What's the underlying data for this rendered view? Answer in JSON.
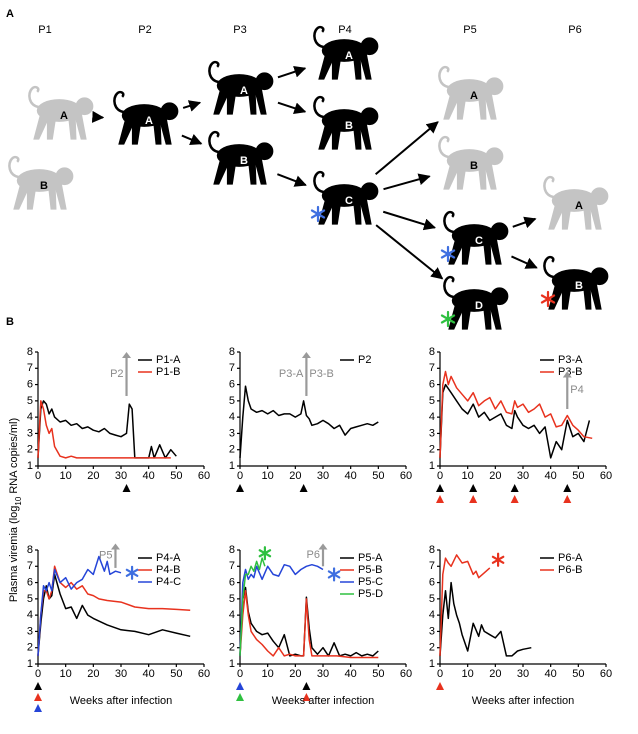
{
  "diagram": {
    "label": "A",
    "passages": [
      "P1",
      "P2",
      "P3",
      "P4",
      "P5",
      "P6"
    ],
    "animals": [
      {
        "passage": 0,
        "label": "A",
        "color": "#c4c4c4"
      },
      {
        "passage": 0,
        "label": "B",
        "color": "#c4c4c4"
      },
      {
        "passage": 1,
        "label": "A",
        "color": "#000000"
      },
      {
        "passage": 2,
        "label": "A",
        "color": "#000000"
      },
      {
        "passage": 2,
        "label": "B",
        "color": "#000000"
      },
      {
        "passage": 3,
        "label": "A",
        "color": "#000000"
      },
      {
        "passage": 3,
        "label": "B",
        "color": "#000000"
      },
      {
        "passage": 3,
        "label": "C",
        "color": "#000000",
        "asterisk": "#3f6fe0"
      },
      {
        "passage": 4,
        "label": "A",
        "color": "#c4c4c4"
      },
      {
        "passage": 4,
        "label": "B",
        "color": "#c4c4c4"
      },
      {
        "passage": 4,
        "label": "C",
        "color": "#000000",
        "asterisk": "#3f6fe0"
      },
      {
        "passage": 4,
        "label": "D",
        "color": "#000000",
        "asterisk": "#2fc040"
      },
      {
        "passage": 5,
        "label": "A",
        "color": "#c4c4c4"
      },
      {
        "passage": 5,
        "label": "B",
        "color": "#000000",
        "asterisk": "#e8321e"
      }
    ]
  },
  "panel_b": {
    "label": "B",
    "y_label": [
      "Plasma viremia (log",
      "10",
      " RNA copies/ml)"
    ]
  },
  "chart_data": [
    {
      "type": "line",
      "xlim": [
        0,
        60
      ],
      "ylim": [
        1,
        8
      ],
      "xticks": [
        0,
        10,
        20,
        30,
        40,
        50,
        60
      ],
      "yticks": [
        1,
        2,
        3,
        4,
        5,
        6,
        7,
        8
      ],
      "legend": "top-right",
      "series": [
        {
          "name": "P1-A",
          "color": "#000000",
          "x": [
            0,
            1,
            2,
            3,
            4,
            5,
            6,
            8,
            10,
            12,
            14,
            16,
            18,
            20,
            22,
            24,
            26,
            28,
            30,
            32,
            33,
            34,
            35,
            40,
            41,
            42,
            44,
            46,
            48,
            50
          ],
          "values": [
            1.5,
            4.5,
            5,
            4.8,
            4.2,
            4.5,
            4,
            3.7,
            3.8,
            3.5,
            3.6,
            3.3,
            3.4,
            3.2,
            3.1,
            3.3,
            3.0,
            2.9,
            2.8,
            3.0,
            4.8,
            4.5,
            1.5,
            1.5,
            2.2,
            1.5,
            2.3,
            1.5,
            2,
            1.6
          ]
        },
        {
          "name": "P1-B",
          "color": "#e8321e",
          "x": [
            0,
            1,
            2,
            3,
            4,
            5,
            6,
            8,
            10,
            12,
            14,
            16,
            20,
            25,
            30,
            35,
            40,
            45,
            48
          ],
          "values": [
            1.5,
            5,
            4.5,
            3.5,
            3,
            3.3,
            2.2,
            1.6,
            1.5,
            1.6,
            1.5,
            1.5,
            1.5,
            1.5,
            1.5,
            1.5,
            1.5,
            1.5,
            1.5
          ]
        }
      ],
      "annotations": [
        {
          "x": 32,
          "y_from": 5.3,
          "y_to": 8,
          "label_left": "P2"
        }
      ],
      "markers": [
        {
          "x": 32,
          "colors": [
            "#000000"
          ]
        }
      ]
    },
    {
      "type": "line",
      "xlim": [
        0,
        60
      ],
      "ylim": [
        1,
        8
      ],
      "xticks": [
        0,
        10,
        20,
        30,
        40,
        50,
        60
      ],
      "yticks": [
        1,
        2,
        3,
        4,
        5,
        6,
        7,
        8
      ],
      "legend": "top-right",
      "series": [
        {
          "name": "P2",
          "color": "#000000",
          "x": [
            0,
            1,
            2,
            3,
            4,
            6,
            8,
            10,
            12,
            14,
            16,
            18,
            20,
            22,
            23,
            24,
            25,
            26,
            28,
            30,
            32,
            34,
            36,
            38,
            40,
            42,
            44,
            46,
            48,
            50
          ],
          "values": [
            1.5,
            4,
            5.9,
            5,
            4.5,
            4.3,
            4.4,
            4.2,
            4.4,
            4.1,
            4.2,
            4.2,
            4,
            4.2,
            5,
            4.1,
            3.9,
            3.5,
            3.6,
            3.8,
            3.6,
            3.3,
            3.5,
            2.9,
            3.3,
            3.4,
            3.5,
            3.6,
            3.5,
            3.7
          ]
        }
      ],
      "annotations": [
        {
          "x": 24,
          "y_from": 5.3,
          "y_to": 8,
          "label_left": "P3-A",
          "label_right": "P3-B"
        }
      ],
      "markers": [
        {
          "x": 0,
          "colors": [
            "#000000"
          ]
        },
        {
          "x": 23,
          "colors": [
            "#000000"
          ]
        }
      ]
    },
    {
      "type": "line",
      "xlim": [
        0,
        60
      ],
      "ylim": [
        1,
        8
      ],
      "xticks": [
        0,
        10,
        20,
        30,
        40,
        50,
        60
      ],
      "yticks": [
        1,
        2,
        3,
        4,
        5,
        6,
        7,
        8
      ],
      "legend": "top-right",
      "series": [
        {
          "name": "P3-A",
          "color": "#000000",
          "x": [
            0,
            1,
            2,
            4,
            6,
            8,
            10,
            12,
            14,
            16,
            18,
            20,
            22,
            24,
            26,
            27,
            28,
            30,
            32,
            34,
            36,
            38,
            40,
            42,
            44,
            46,
            48,
            50,
            52,
            54
          ],
          "values": [
            1.5,
            5.5,
            6,
            5.5,
            5,
            4.5,
            4.2,
            4.8,
            4,
            4.3,
            3.8,
            4,
            4.2,
            3.5,
            3.3,
            4.4,
            4,
            3.5,
            3.3,
            3.5,
            3,
            3.4,
            1.5,
            2.5,
            2,
            3.8,
            2.8,
            3,
            2.5,
            3.8
          ]
        },
        {
          "name": "P3-B",
          "color": "#e8321e",
          "x": [
            0,
            1,
            2,
            3,
            4,
            6,
            8,
            10,
            12,
            14,
            16,
            18,
            20,
            22,
            24,
            26,
            27,
            28,
            30,
            32,
            34,
            36,
            38,
            40,
            42,
            44,
            46,
            48,
            50,
            52,
            55
          ],
          "values": [
            1.5,
            6,
            6.8,
            6,
            6.5,
            5.8,
            5.4,
            5,
            5.5,
            4.7,
            5,
            5.2,
            4.5,
            5,
            4.3,
            4.2,
            5,
            4.6,
            4.8,
            4.3,
            4.5,
            4.8,
            4.0,
            4.2,
            3.4,
            3.5,
            4.1,
            3.5,
            3.2,
            2.8,
            2.7
          ]
        }
      ],
      "annotations": [
        {
          "x": 46,
          "y_from": 4.5,
          "y_to": 6.8,
          "label_right": "P4"
        }
      ],
      "markers": [
        {
          "x": 0,
          "colors": [
            "#000000",
            "#e8321e"
          ]
        },
        {
          "x": 12,
          "colors": [
            "#000000",
            "#e8321e"
          ]
        },
        {
          "x": 27,
          "colors": [
            "#000000",
            "#e8321e"
          ]
        },
        {
          "x": 46,
          "colors": [
            "#000000",
            "#e8321e"
          ]
        }
      ]
    },
    {
      "type": "line",
      "xlim": [
        0,
        60
      ],
      "ylim": [
        1,
        8
      ],
      "xticks": [
        0,
        10,
        20,
        30,
        40,
        50,
        60
      ],
      "yticks": [
        1,
        2,
        3,
        4,
        5,
        6,
        7,
        8
      ],
      "legend": "top-right",
      "x_label": "Weeks after infection",
      "series": [
        {
          "name": "P4-A",
          "color": "#000000",
          "x": [
            0,
            1,
            2,
            3,
            4,
            5,
            6,
            8,
            10,
            12,
            14,
            16,
            18,
            20,
            25,
            30,
            35,
            40,
            45,
            50,
            55
          ],
          "values": [
            1.5,
            3.5,
            5,
            5.8,
            5,
            5.2,
            6.5,
            5.3,
            4.4,
            4.5,
            3.8,
            4.6,
            4,
            3.8,
            3.4,
            3.1,
            3,
            2.8,
            3.1,
            2.9,
            2.7
          ]
        },
        {
          "name": "P4-B",
          "color": "#e8321e",
          "x": [
            0,
            1,
            2,
            3,
            4,
            5,
            6,
            8,
            10,
            12,
            14,
            16,
            18,
            20,
            22,
            25,
            30,
            35,
            40,
            45,
            50,
            55
          ],
          "values": [
            1.5,
            4,
            5.5,
            5.5,
            5,
            5.5,
            7,
            6,
            5.7,
            6,
            5.6,
            5.8,
            5.3,
            5.2,
            5,
            4.9,
            4.8,
            4.5,
            4.4,
            4.4,
            4.35,
            4.3
          ]
        },
        {
          "name": "P4-C",
          "color": "#2545d8",
          "x": [
            0,
            1,
            2,
            3,
            4,
            5,
            6,
            8,
            10,
            12,
            14,
            16,
            18,
            20,
            22,
            24,
            25,
            26,
            28,
            30
          ],
          "values": [
            1.5,
            4,
            5.8,
            5.5,
            6,
            5.5,
            6.8,
            6,
            6.3,
            5.6,
            6,
            6.2,
            6.8,
            6.5,
            7.6,
            6.7,
            7.3,
            6.5,
            6.7,
            6.6
          ]
        }
      ],
      "annotations": [
        {
          "x": 28,
          "y_from": 6.9,
          "y_to": 8.4,
          "label_left": "P5"
        }
      ],
      "asterisks": [
        {
          "x": 34,
          "y": 6.6,
          "color": "#3f6fe0"
        }
      ],
      "markers": [
        {
          "x": 0,
          "colors": [
            "#000000",
            "#e8321e",
            "#2545d8"
          ]
        }
      ]
    },
    {
      "type": "line",
      "xlim": [
        0,
        60
      ],
      "ylim": [
        1,
        8
      ],
      "xticks": [
        0,
        10,
        20,
        30,
        40,
        50,
        60
      ],
      "yticks": [
        1,
        2,
        3,
        4,
        5,
        6,
        7,
        8
      ],
      "legend": "top-right",
      "x_label": "Weeks after infection",
      "series": [
        {
          "name": "P5-A",
          "color": "#000000",
          "x": [
            0,
            1,
            2,
            3,
            4,
            6,
            8,
            10,
            12,
            14,
            16,
            18,
            20,
            22,
            23,
            24,
            25,
            26,
            28,
            30,
            32,
            34,
            36,
            38,
            40,
            42,
            44,
            46,
            48,
            50
          ],
          "values": [
            1.5,
            5,
            5.7,
            4.2,
            3.5,
            3,
            2.8,
            2.9,
            2.4,
            2,
            2.8,
            1.5,
            1.6,
            1.5,
            1.5,
            5.1,
            3.2,
            2,
            1.6,
            2,
            1.5,
            2.3,
            1.5,
            1.6,
            1.5,
            1.7,
            1.5,
            1.6,
            1.5,
            1.8
          ]
        },
        {
          "name": "P5-B",
          "color": "#e8321e",
          "x": [
            0,
            1,
            2,
            3,
            4,
            6,
            8,
            10,
            12,
            14,
            16,
            18,
            20,
            22,
            23,
            24,
            25,
            26,
            28,
            30,
            35,
            40,
            45,
            50
          ],
          "values": [
            1.5,
            4,
            5.5,
            4,
            3,
            2.5,
            2.2,
            1.8,
            1.5,
            2,
            1.5,
            1.6,
            1.5,
            1.5,
            1.5,
            5,
            2.5,
            1.5,
            1.5,
            1.5,
            1.5,
            1.4,
            1.4,
            1.4
          ]
        },
        {
          "name": "P5-C",
          "color": "#2545d8",
          "x": [
            0,
            1,
            2,
            3,
            4,
            5,
            6,
            8,
            10,
            12,
            14,
            16,
            18,
            20,
            22,
            24,
            26,
            28,
            30
          ],
          "values": [
            1.5,
            6,
            6.8,
            6.2,
            6.5,
            6.3,
            7,
            6.2,
            7,
            6.5,
            6.4,
            7.1,
            7,
            6.5,
            6.8,
            7,
            7.1,
            7,
            6.8
          ]
        },
        {
          "name": "P5-D",
          "color": "#2fc040",
          "x": [
            0,
            1,
            2,
            3,
            4,
            5,
            6,
            7,
            8,
            9
          ],
          "values": [
            1.5,
            5,
            6.5,
            6.5,
            7,
            6.7,
            7.3,
            6.8,
            7.5,
            7
          ]
        }
      ],
      "annotations": [
        {
          "x": 30,
          "y_from": 7,
          "y_to": 8.4,
          "label_left": "P6"
        }
      ],
      "asterisks": [
        {
          "x": 9,
          "y": 7.8,
          "color": "#2fc040"
        },
        {
          "x": 34,
          "y": 6.5,
          "color": "#3f6fe0"
        }
      ],
      "markers": [
        {
          "x": 0,
          "colors": [
            "#2545d8",
            "#2fc040"
          ]
        },
        {
          "x": 24,
          "colors": [
            "#000000",
            "#e8321e"
          ]
        }
      ]
    },
    {
      "type": "line",
      "xlim": [
        0,
        60
      ],
      "ylim": [
        1,
        8
      ],
      "xticks": [
        0,
        10,
        20,
        30,
        40,
        50,
        60
      ],
      "yticks": [
        1,
        2,
        3,
        4,
        5,
        6,
        7,
        8
      ],
      "legend": "top-right",
      "x_label": "Weeks after infection",
      "series": [
        {
          "name": "P6-A",
          "color": "#000000",
          "x": [
            0,
            1,
            2,
            3,
            4,
            5,
            6,
            7,
            8,
            10,
            12,
            14,
            15,
            16,
            18,
            20,
            22,
            24,
            26,
            28,
            30,
            33
          ],
          "values": [
            1.5,
            4,
            5.5,
            3.8,
            6,
            4.7,
            4,
            3.5,
            2.8,
            1.8,
            3.5,
            2.7,
            3.4,
            3,
            2.8,
            2.6,
            3,
            1.5,
            1.5,
            1.8,
            1.9,
            2.0
          ]
        },
        {
          "name": "P6-B",
          "color": "#e8321e",
          "x": [
            0,
            1,
            2,
            3,
            4,
            6,
            8,
            10,
            12,
            13,
            14,
            16,
            18
          ],
          "values": [
            1.5,
            6.5,
            7.5,
            7.2,
            7,
            7.7,
            7.2,
            7.3,
            6.5,
            6.7,
            6.3,
            6.6,
            6.9
          ]
        }
      ],
      "asterisks": [
        {
          "x": 21,
          "y": 7.4,
          "color": "#e8321e"
        }
      ],
      "markers": [
        {
          "x": 0,
          "colors": [
            "#e8321e"
          ]
        }
      ]
    }
  ]
}
